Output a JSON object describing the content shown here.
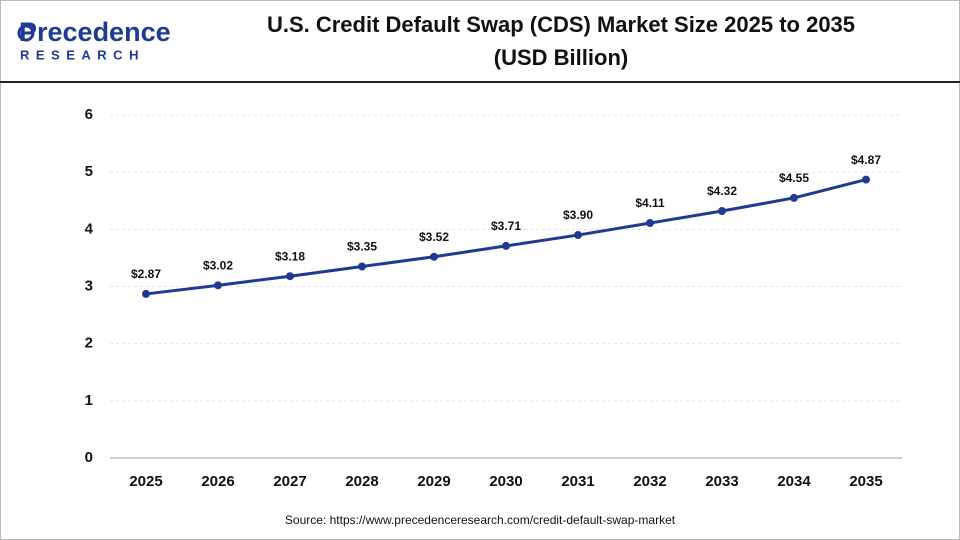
{
  "header": {
    "logo_name": "Precedence",
    "logo_tagline": "RESEARCH"
  },
  "chart_data": {
    "type": "line",
    "title": "U.S. Credit Default Swap (CDS) Market Size 2025 to 2035",
    "subtitle": "(USD Billion)",
    "categories": [
      "2025",
      "2026",
      "2027",
      "2028",
      "2029",
      "2030",
      "2031",
      "2032",
      "2033",
      "2034",
      "2035"
    ],
    "values": [
      2.87,
      3.02,
      3.18,
      3.35,
      3.52,
      3.71,
      3.9,
      4.11,
      4.32,
      4.55,
      4.87
    ],
    "value_labels": [
      "$2.87",
      "$3.02",
      "$3.18",
      "$3.35",
      "$3.52",
      "$3.71",
      "$3.90",
      "$4.11",
      "$4.32",
      "$4.55",
      "$4.87"
    ],
    "color": "#1f3a93",
    "ylim": [
      0,
      6
    ],
    "yticks": [
      0,
      1,
      2,
      3,
      4,
      5,
      6
    ],
    "grid": true,
    "source": "Source: https://www.precedenceresearch.com/credit-default-swap-market"
  }
}
